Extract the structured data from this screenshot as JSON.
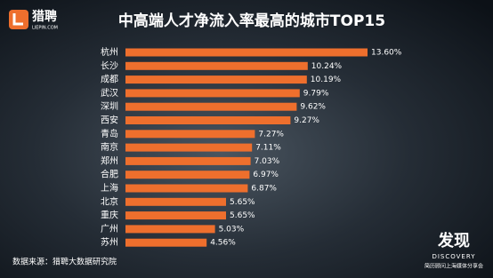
{
  "chart_data": {
    "type": "bar",
    "orientation": "horizontal",
    "title": "中高端人才净流入率最高的城市TOP15",
    "categories": [
      "杭州",
      "长沙",
      "成都",
      "武汉",
      "深圳",
      "西安",
      "青岛",
      "南京",
      "郑州",
      "合肥",
      "上海",
      "北京",
      "重庆",
      "广州",
      "苏州"
    ],
    "values": [
      13.6,
      10.24,
      10.19,
      9.79,
      9.62,
      9.27,
      7.27,
      7.11,
      7.03,
      6.97,
      6.87,
      5.65,
      5.65,
      5.03,
      4.56
    ],
    "value_labels": [
      "13.60%",
      "10.24%",
      "10.19%",
      "9.79%",
      "9.62%",
      "9.27%",
      "7.27%",
      "7.11%",
      "7.03%",
      "6.97%",
      "6.87%",
      "5.65%",
      "5.65%",
      "5.03%",
      "4.56%"
    ],
    "color": "#ee6f2d",
    "source": "数据来源：猎聘大数据研究院"
  },
  "logo": {
    "name": "猎聘",
    "domain": "LIEPIN.COM"
  },
  "watermark": {
    "title": "发现",
    "subtitle": "DISCOVERY",
    "caption": "简历顾问上海媒体分享会"
  }
}
